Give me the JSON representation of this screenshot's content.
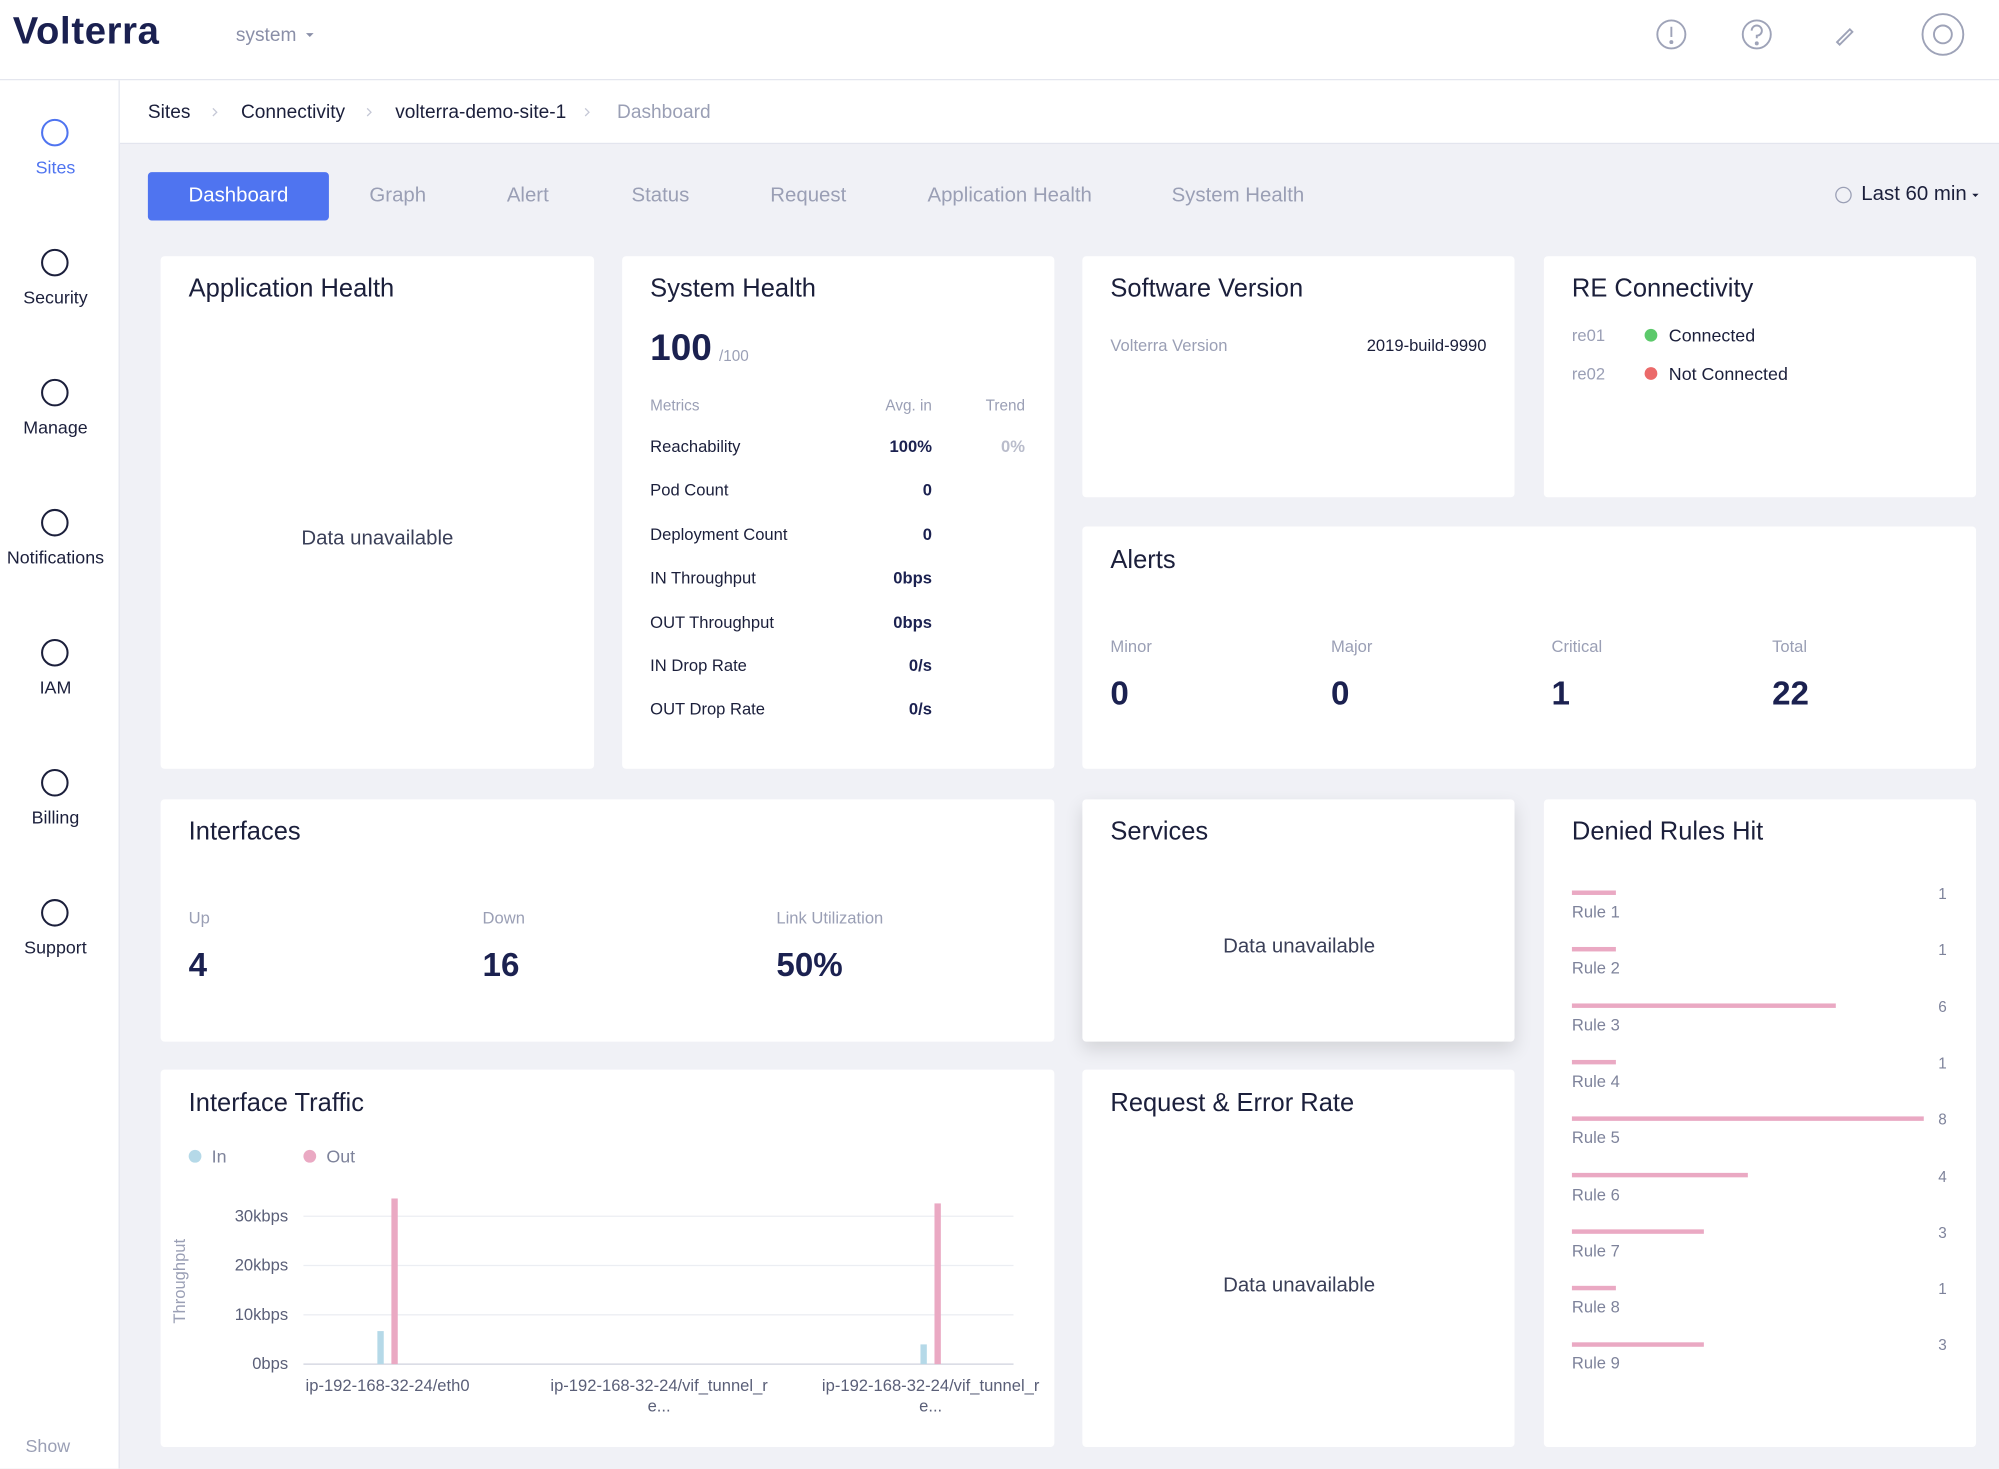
{
  "header": {
    "logo": "Volterra",
    "namespace": "system"
  },
  "sidebar": {
    "items": [
      "Sites",
      "Security",
      "Manage",
      "Notifications",
      "IAM",
      "Billing",
      "Support"
    ],
    "show": "Show"
  },
  "breadcrumb": [
    "Sites",
    "Connectivity",
    "volterra-demo-site-1",
    "Dashboard"
  ],
  "tabs": [
    "Dashboard",
    "Graph",
    "Alert",
    "Status",
    "Request",
    "Application Health",
    "System Health"
  ],
  "time_range": "Last 60 min",
  "application_health": {
    "title": "Application Health",
    "message": "Data unavailable"
  },
  "system_health": {
    "title": "System Health",
    "score": 100,
    "score_max": "/100",
    "columns": [
      "Metrics",
      "Avg. in",
      "Trend"
    ],
    "rows": [
      [
        "Reachability",
        "100%",
        "0%"
      ],
      [
        "Pod Count",
        "0"
      ],
      [
        "Deployment Count",
        "0"
      ],
      [
        "IN Throughput",
        "0bps"
      ],
      [
        "OUT Throughput",
        "0bps"
      ],
      [
        "IN Drop Rate",
        "0/s"
      ],
      [
        "OUT Drop Rate",
        "0/s"
      ]
    ]
  },
  "software_version": {
    "title": "Software Version",
    "label": "Volterra Version",
    "value": "2019-build-9990"
  },
  "re_connectivity": {
    "title": "RE Connectivity",
    "rows": [
      {
        "name": "re01",
        "status": "Connected",
        "color": "#5cc96b"
      },
      {
        "name": "re02",
        "status": "Not Connected",
        "color": "#eb6a6a"
      }
    ]
  },
  "alerts": {
    "title": "Alerts",
    "items": [
      {
        "label": "Minor",
        "value": 0
      },
      {
        "label": "Major",
        "value": 0
      },
      {
        "label": "Critical",
        "value": 1
      },
      {
        "label": "Total",
        "value": 22
      }
    ]
  },
  "interfaces": {
    "title": "Interfaces",
    "items": [
      {
        "label": "Up",
        "value": "4"
      },
      {
        "label": "Down",
        "value": "16"
      },
      {
        "label": "Link Utilization",
        "value": "50%"
      }
    ]
  },
  "services": {
    "title": "Services",
    "message": "Data unavailable"
  },
  "request_error_rate": {
    "title": "Request & Error Rate",
    "message": "Data unavailable"
  },
  "interface_traffic": {
    "type": "bar",
    "title": "Interface Traffic",
    "ylabel": "Throughput",
    "categories": [
      "ip-192-168-32-24/eth0",
      "ip-192-168-32-24/vif_tunnel_re...",
      "ip-192-168-32-24/vif_tunnel_re..."
    ],
    "series": [
      {
        "name": "In",
        "color": "#b5d9e8",
        "values": [
          6700,
          0,
          4000
        ]
      },
      {
        "name": "Out",
        "color": "#eaa9c3",
        "values": [
          33600,
          0,
          32600
        ]
      }
    ],
    "ylim": [
      0,
      30000
    ],
    "yticks": [
      {
        "value": 0,
        "label": "0bps"
      },
      {
        "value": 10000,
        "label": "10kbps"
      },
      {
        "value": 20000,
        "label": "20kbps"
      },
      {
        "value": 30000,
        "label": "30kbps"
      }
    ],
    "grid": true
  },
  "denied_rules_hit": {
    "type": "hbar",
    "title": "Denied Rules Hit",
    "categories": [
      "Rule 1",
      "Rule 2",
      "Rule 3",
      "Rule 4",
      "Rule 5",
      "Rule 6",
      "Rule 7",
      "Rule 8",
      "Rule 9"
    ],
    "values": [
      1,
      1,
      6,
      1,
      8,
      4,
      3,
      1,
      3
    ],
    "color": "#eaa9c3",
    "xlim": [
      0,
      8
    ]
  }
}
